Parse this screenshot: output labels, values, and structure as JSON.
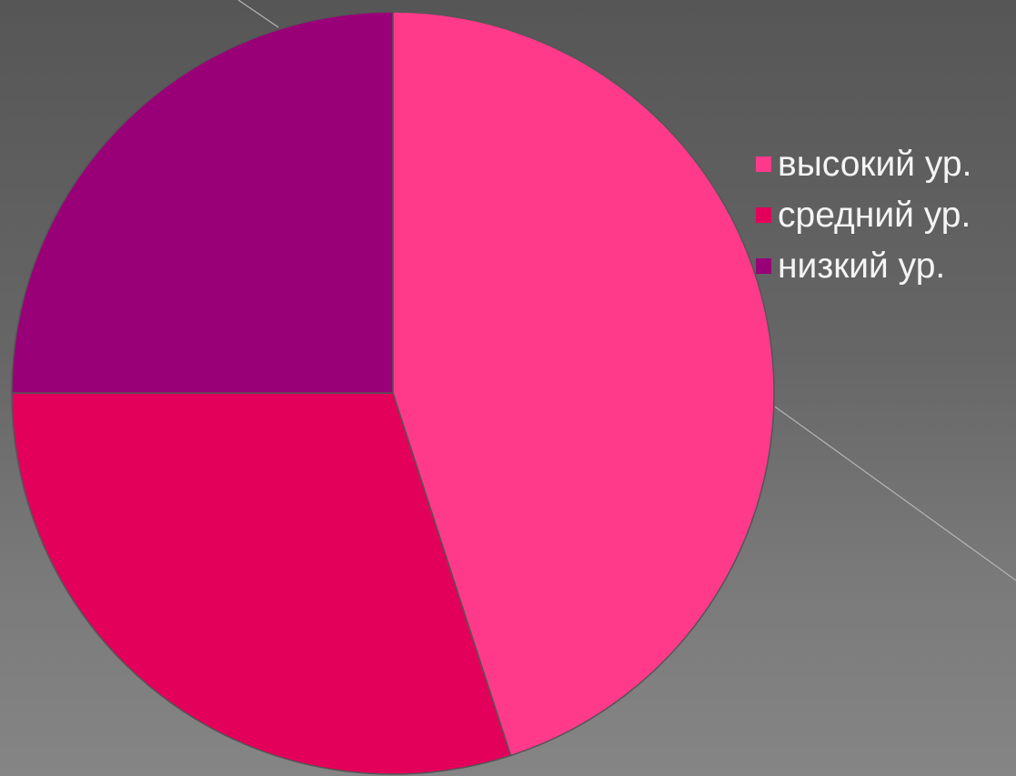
{
  "chart_data": {
    "type": "pie",
    "categories": [
      "высокий ур.",
      "средний ур.",
      "низкий ур."
    ],
    "values": [
      45,
      30,
      25
    ],
    "colors": [
      "#FF3A8A",
      "#E3005A",
      "#990077"
    ],
    "start_angle_deg": 0,
    "direction": "clockwise",
    "title": "",
    "legend": {
      "placement": "right",
      "entries": [
        "высокий ур.",
        "средний ур.",
        "низкий ур."
      ]
    }
  },
  "slide": {
    "background_color": "#5f5f5f",
    "decorative_line_color": "#b5b5b5",
    "slice_border_color": "#555555"
  }
}
